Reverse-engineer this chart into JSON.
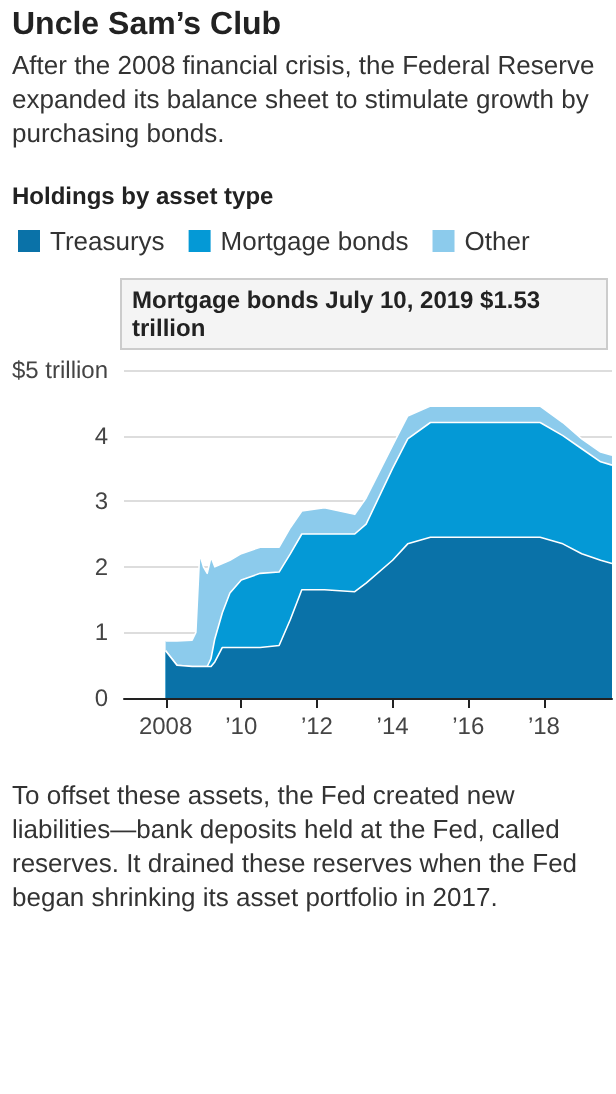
{
  "chart_data": {
    "type": "area",
    "stacked": true,
    "title": "Uncle Sam’s Club",
    "subtitle": "After the 2008 financial crisis, the Federal Reserve expanded its balance sheet to stimulate growth by purchasing bonds.",
    "legend_title": "Holdings by asset type",
    "annotations": [
      "Mortgage bonds  July 10, 2019  $1.53 trillion",
      "To offset these assets, the Fed created new liabilities—bank deposits held at the Fed, called reserves. It drained these reserves when the Fed began shrinking its asset portfolio in 2017."
    ],
    "x": [
      2008.0,
      2008.3,
      2008.7,
      2008.8,
      2008.9,
      2009.0,
      2009.1,
      2009.2,
      2009.3,
      2009.5,
      2009.7,
      2010.0,
      2010.5,
      2011.0,
      2011.3,
      2011.6,
      2012.2,
      2013.0,
      2013.3,
      2014.0,
      2014.4,
      2015.0,
      2017.9,
      2018.5,
      2019.0,
      2019.5,
      2019.8
    ],
    "series": [
      {
        "name": "Treasurys",
        "color": "#0a72a8",
        "values": [
          0.72,
          0.5,
          0.48,
          0.48,
          0.48,
          0.48,
          0.48,
          0.48,
          0.55,
          0.77,
          0.77,
          0.77,
          0.77,
          0.8,
          1.2,
          1.65,
          1.65,
          1.62,
          1.75,
          2.1,
          2.35,
          2.45,
          2.45,
          2.35,
          2.2,
          2.1,
          2.05
        ]
      },
      {
        "name": "Mortgage bonds",
        "color": "#0499d6",
        "values": [
          0,
          0,
          0,
          0,
          0,
          0,
          0,
          0.12,
          0.35,
          0.53,
          0.83,
          1.03,
          1.13,
          1.12,
          1.0,
          0.85,
          0.85,
          0.88,
          0.9,
          1.4,
          1.6,
          1.75,
          1.75,
          1.65,
          1.6,
          1.5,
          1.5
        ]
      },
      {
        "name": "Other",
        "color": "#8ccbec",
        "values": [
          0.15,
          0.37,
          0.4,
          0.52,
          1.72,
          1.52,
          1.42,
          1.55,
          1.1,
          0.75,
          0.5,
          0.4,
          0.4,
          0.38,
          0.4,
          0.35,
          0.4,
          0.3,
          0.4,
          0.35,
          0.35,
          0.25,
          0.25,
          0.2,
          0.15,
          0.15,
          0.15
        ]
      }
    ],
    "xlim": [
      2006.9,
      2019.8
    ],
    "xticks": [
      {
        "value": 2008,
        "label": "2008"
      },
      {
        "value": 2010,
        "label": "’10"
      },
      {
        "value": 2012,
        "label": "’12"
      },
      {
        "value": 2014,
        "label": "’14"
      },
      {
        "value": 2016,
        "label": "’16"
      },
      {
        "value": 2018,
        "label": "’18"
      }
    ],
    "ylim": [
      0,
      5
    ],
    "yticks": [
      0,
      1,
      2,
      3,
      4,
      {
        "value": 5,
        "label": "$5 trillion"
      }
    ],
    "grid": "y",
    "legend": "top left"
  }
}
